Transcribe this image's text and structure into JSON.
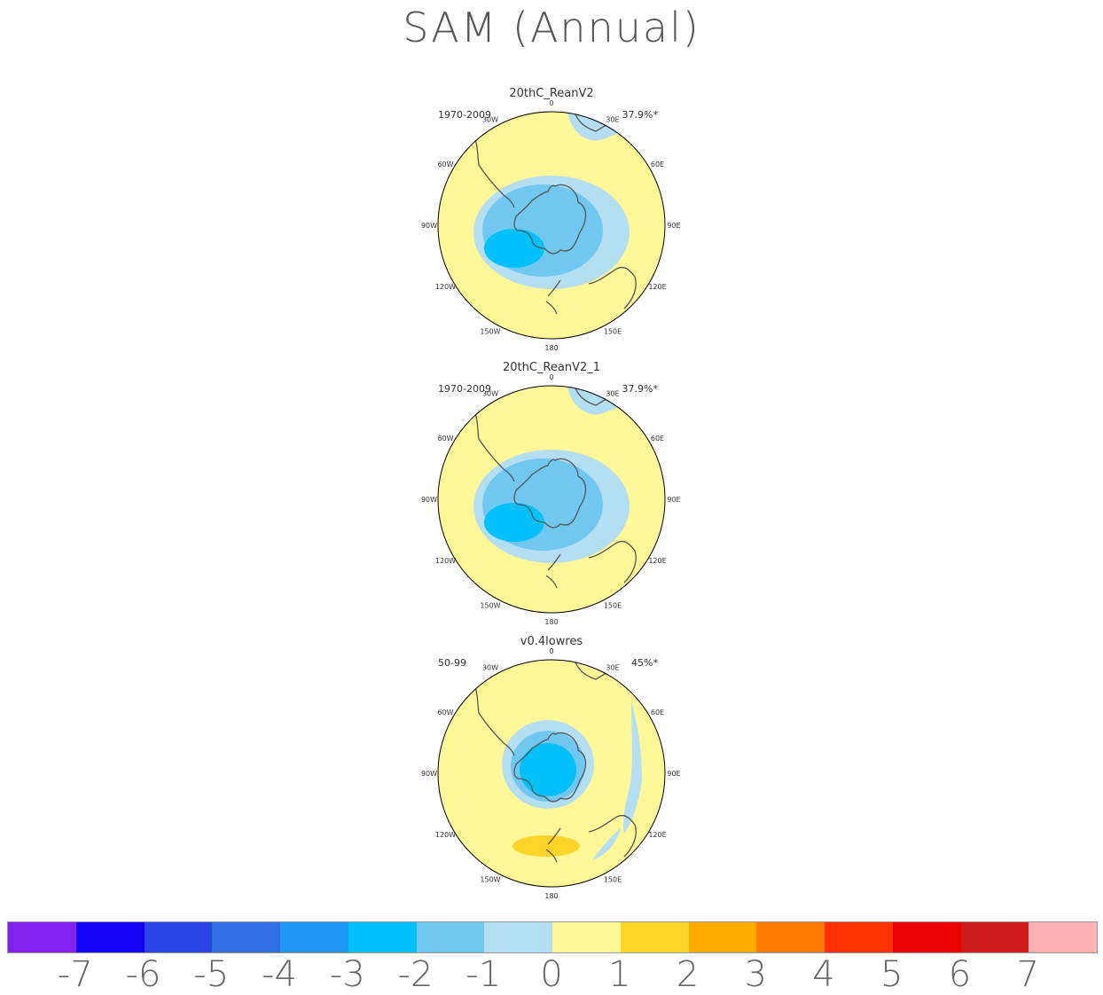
{
  "title": "SAM (Annual)",
  "panels": [
    {
      "name": "20thC_ReanV2",
      "period": "1970-2009",
      "variance": "37.9%*",
      "variant": "a"
    },
    {
      "name": "20thC_ReanV2_1",
      "period": "1970-2009",
      "variance": "37.9%*",
      "variant": "a"
    },
    {
      "name": "v0.4lowres",
      "period": "50-99",
      "variance": "45%*",
      "variant": "b"
    }
  ],
  "longitude_labels": [
    "0",
    "30E",
    "60E",
    "90E",
    "120E",
    "150E",
    "180",
    "150W",
    "120W",
    "90W",
    "60W",
    "30W"
  ],
  "colors": {
    "land": "#555555",
    "ring": "#000000"
  },
  "chart_data": {
    "type": "heatmap",
    "projection": "south-polar-stereographic",
    "colorbar": {
      "ticks": [
        "-7",
        "-6",
        "-5",
        "-4",
        "-3",
        "-2",
        "-1",
        "0",
        "1",
        "2",
        "3",
        "4",
        "5",
        "6",
        "7"
      ],
      "colors": [
        "#8021f0",
        "#1404f5",
        "#2c44e6",
        "#316ee6",
        "#1f98f7",
        "#02c0fa",
        "#70c8f1",
        "#b4def2",
        "#fff798",
        "#ffd428",
        "#ffaa00",
        "#ff7a00",
        "#ff3100",
        "#e90000",
        "#d01c1c",
        "#ffb3b3"
      ]
    }
  }
}
